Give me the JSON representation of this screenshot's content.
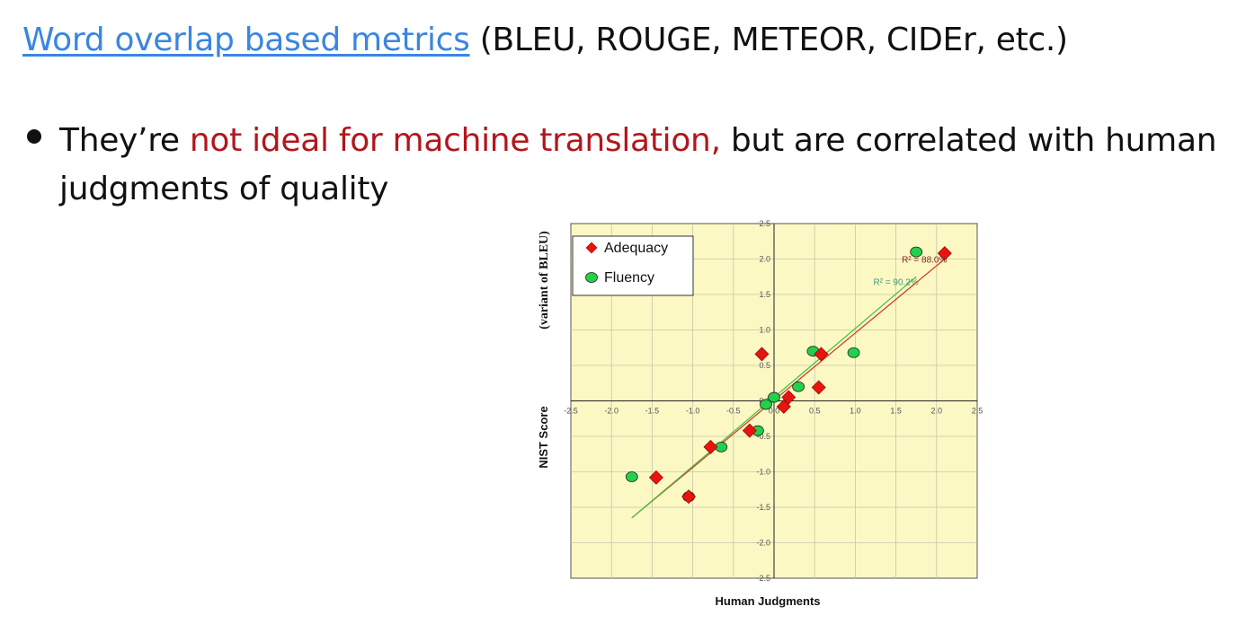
{
  "slide": {
    "title_link": "Word overlap based metrics",
    "title_rest": " (BLEU, ROUGE, METEOR, CIDEr, etc.)",
    "bullet_before": "They’re ",
    "bullet_highlight": "not ideal for machine translation,",
    "bullet_after": " but are correlated with human judgments of quality",
    "colors": {
      "link": "#3a86e0",
      "highlight": "#b3161b",
      "text": "#111111"
    }
  },
  "chart_data": {
    "type": "scatter",
    "xlabel": "Human Judgments",
    "ylabel_main": "NIST Score",
    "ylabel_sub": "(variant of BLEU)",
    "xlim": [
      -2.5,
      2.5
    ],
    "ylim": [
      -2.5,
      2.5
    ],
    "x_ticks": [
      "-2.5",
      "-2.0",
      "-1.5",
      "-1.0",
      "-0.5",
      "0.0",
      "0.5",
      "1.0",
      "1.5",
      "2.0",
      "2.5"
    ],
    "y_ticks": [
      "-2.5",
      "-2.0",
      "-1.5",
      "-1.0",
      "-0.5",
      "0.0",
      "0.5",
      "1.0",
      "1.5",
      "2.0",
      "2.5"
    ],
    "grid": true,
    "legend_position": "top-left",
    "background": "#fbf8c4",
    "series": [
      {
        "name": "Adequacy",
        "marker": "diamond",
        "color": "#e8150f",
        "x": [
          -1.45,
          -1.05,
          -0.78,
          -0.3,
          -0.15,
          0.12,
          0.18,
          0.55,
          0.58,
          2.1
        ],
        "y": [
          -1.08,
          -1.35,
          -0.65,
          -0.42,
          0.66,
          -0.08,
          0.05,
          0.19,
          0.66,
          2.08
        ],
        "r2_label": "R² = 88.0%",
        "trend": {
          "x": [
            -1.75,
            2.1
          ],
          "y": [
            -1.65,
            2.0
          ]
        }
      },
      {
        "name": "Fluency",
        "marker": "circle",
        "color": "#22d14a",
        "x": [
          -1.75,
          -1.05,
          -0.65,
          -0.2,
          -0.1,
          0.0,
          0.3,
          0.48,
          0.98,
          1.75
        ],
        "y": [
          -1.07,
          -1.35,
          -0.65,
          -0.42,
          -0.05,
          0.05,
          0.2,
          0.7,
          0.68,
          2.1
        ],
        "r2_label": "R² = 90.2%",
        "trend": {
          "x": [
            -1.75,
            1.75
          ],
          "y": [
            -1.65,
            1.75
          ]
        }
      }
    ]
  }
}
